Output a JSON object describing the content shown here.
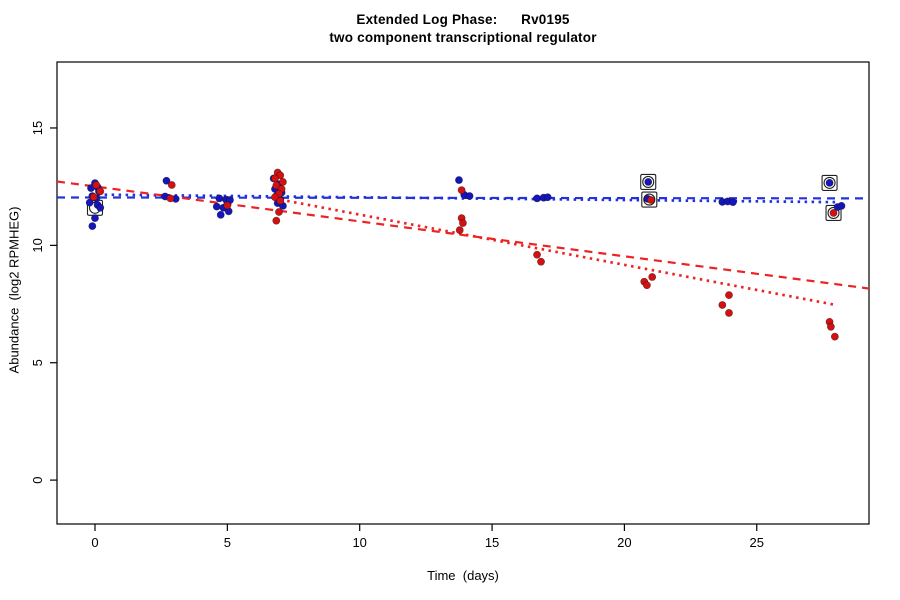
{
  "title": {
    "line1": "Extended Log Phase:      Rv0195",
    "line2": "two component transcriptional regulator"
  },
  "chart_data": {
    "type": "scatter",
    "title": "Extended Log Phase: Rv0195 — two component transcriptional regulator",
    "xlabel": "Time  (days)",
    "ylabel": "Abundance  (log2 RPMHEG)",
    "xlim": [
      -1.435,
      29.24
    ],
    "ylim": [
      -1.87,
      17.81
    ],
    "xticks": [
      0,
      5,
      10,
      15,
      20,
      25
    ],
    "yticks": [
      0,
      5,
      10,
      15
    ],
    "grid": false,
    "legend": "none",
    "colors": {
      "point_blue": "#1515bb",
      "point_red": "#d41111",
      "line_blue": "#2233dd",
      "line_red": "#ee2222",
      "flag_stroke": "#222222"
    },
    "series": [
      {
        "name": "condition-blue",
        "color": "#1515bb",
        "points": [
          [
            0.0,
            12.65
          ],
          [
            0.1,
            12.48
          ],
          [
            -0.15,
            12.44
          ],
          [
            0.15,
            12.3
          ],
          [
            -0.1,
            12.1
          ],
          [
            0.05,
            12.0
          ],
          [
            -0.2,
            11.82
          ],
          [
            0.1,
            11.72
          ],
          [
            0.2,
            11.6
          ],
          [
            0.0,
            11.16
          ],
          [
            -0.1,
            10.82
          ],
          [
            2.7,
            12.75
          ],
          [
            2.65,
            12.08
          ],
          [
            3.05,
            11.98
          ],
          [
            4.7,
            12.0
          ],
          [
            4.95,
            11.95
          ],
          [
            5.1,
            11.93
          ],
          [
            4.6,
            11.65
          ],
          [
            4.85,
            11.6
          ],
          [
            5.05,
            11.45
          ],
          [
            4.75,
            11.3
          ],
          [
            6.75,
            12.85
          ],
          [
            6.95,
            12.6
          ],
          [
            6.8,
            12.4
          ],
          [
            7.05,
            12.25
          ],
          [
            6.85,
            12.1
          ],
          [
            7.0,
            11.95
          ],
          [
            6.9,
            11.8
          ],
          [
            7.1,
            11.68
          ],
          [
            13.75,
            12.78
          ],
          [
            13.95,
            12.15
          ],
          [
            14.15,
            12.1
          ],
          [
            16.7,
            12.0
          ],
          [
            16.95,
            12.03
          ],
          [
            17.1,
            12.05
          ],
          [
            20.88,
            11.98
          ],
          [
            23.7,
            11.85
          ],
          [
            23.9,
            11.87
          ],
          [
            24.1,
            11.84
          ],
          [
            20.9,
            12.7
          ],
          [
            27.75,
            12.66
          ],
          [
            28.05,
            11.63
          ],
          [
            28.2,
            11.68
          ]
        ]
      },
      {
        "name": "condition-red",
        "color": "#d41111",
        "points": [
          [
            0.05,
            12.57
          ],
          [
            0.2,
            12.3
          ],
          [
            -0.05,
            12.06
          ],
          [
            2.9,
            12.57
          ],
          [
            2.85,
            12.0
          ],
          [
            5.0,
            11.7
          ],
          [
            6.9,
            13.1
          ],
          [
            7.0,
            12.98
          ],
          [
            6.8,
            12.85
          ],
          [
            7.1,
            12.7
          ],
          [
            6.85,
            12.55
          ],
          [
            7.05,
            12.4
          ],
          [
            6.95,
            12.2
          ],
          [
            6.8,
            12.05
          ],
          [
            7.0,
            11.9
          ],
          [
            6.95,
            11.42
          ],
          [
            6.85,
            11.05
          ],
          [
            13.85,
            12.35
          ],
          [
            13.85,
            11.16
          ],
          [
            13.9,
            10.95
          ],
          [
            13.78,
            10.65
          ],
          [
            16.7,
            9.6
          ],
          [
            16.85,
            9.3
          ],
          [
            21.0,
            11.93
          ],
          [
            21.05,
            8.65
          ],
          [
            20.75,
            8.45
          ],
          [
            20.85,
            8.3
          ],
          [
            23.95,
            7.88
          ],
          [
            23.7,
            7.46
          ],
          [
            23.95,
            7.12
          ],
          [
            27.9,
            11.38
          ],
          [
            27.75,
            6.74
          ],
          [
            27.8,
            6.53
          ],
          [
            27.95,
            6.11
          ]
        ]
      }
    ],
    "flag_markers": [
      [
        20.9,
        12.7
      ],
      [
        20.94,
        11.95
      ],
      [
        27.75,
        12.66
      ],
      [
        27.9,
        11.38
      ],
      [
        0.0,
        11.6
      ]
    ],
    "lines": [
      {
        "name": "blue-fit-dashed",
        "style": "dashed",
        "color": "#2233dd",
        "x1": -1.435,
        "y1": 12.04,
        "x2": 29.24,
        "y2": 12.0
      },
      {
        "name": "blue-fit-dotted",
        "style": "dotted",
        "color": "#2233dd",
        "x1": 0.1,
        "y1": 12.16,
        "x2": 28.0,
        "y2": 11.84
      },
      {
        "name": "red-fit-dashed",
        "style": "dashed",
        "color": "#ee2222",
        "x1": -1.435,
        "y1": 12.72,
        "x2": 29.24,
        "y2": 8.16
      },
      {
        "name": "red-fit-dotted",
        "style": "dotted",
        "color": "#ee2222",
        "x1": 7.0,
        "y1": 11.95,
        "x2": 27.9,
        "y2": 7.48
      }
    ]
  }
}
